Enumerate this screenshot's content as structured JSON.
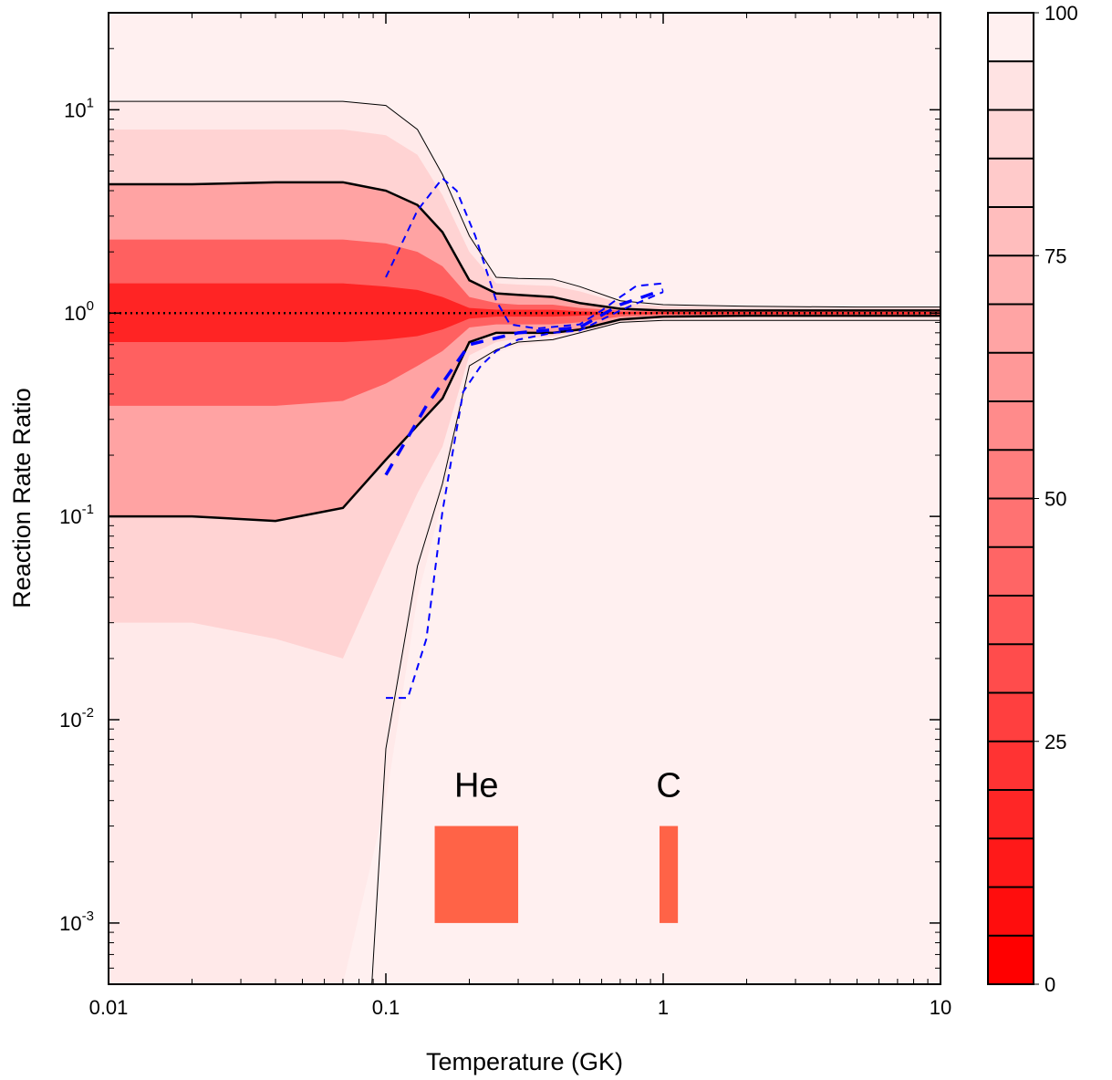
{
  "chart_data": {
    "type": "contour",
    "xlabel": "Temperature (GK)",
    "ylabel": "Reaction Rate Ratio",
    "log_x": true,
    "log_y": true,
    "xlim": [
      0.01,
      10
    ],
    "ylim": [
      0.0005,
      30
    ],
    "xticks": [
      0.01,
      0.1,
      1,
      10
    ],
    "yticks": [
      {
        "value": 0.001,
        "label": "10",
        "exponent": "-3"
      },
      {
        "value": 0.01,
        "label": "10",
        "exponent": "-2"
      },
      {
        "value": 0.1,
        "label": "10",
        "exponent": "-1"
      },
      {
        "value": 1,
        "label": "10",
        "exponent": "0"
      },
      {
        "value": 10,
        "label": "10",
        "exponent": "1"
      }
    ],
    "xminor": [
      0.02,
      0.03,
      0.04,
      0.05,
      0.06,
      0.07,
      0.08,
      0.09,
      0.2,
      0.3,
      0.4,
      0.5,
      0.6,
      0.7,
      0.8,
      0.9,
      2,
      3,
      4,
      5,
      6,
      7,
      8,
      9
    ],
    "yminor": [
      0.0006,
      0.0007,
      0.0008,
      0.0009,
      0.002,
      0.003,
      0.004,
      0.005,
      0.006,
      0.007,
      0.008,
      0.009,
      0.02,
      0.03,
      0.04,
      0.05,
      0.06,
      0.07,
      0.08,
      0.09,
      0.2,
      0.3,
      0.4,
      0.5,
      0.6,
      0.7,
      0.8,
      0.9,
      2,
      3,
      4,
      5,
      6,
      7,
      8,
      9,
      20
    ],
    "colormap": [
      "#ff0000",
      "#fff0f0"
    ],
    "x": [
      0.01,
      0.02,
      0.04,
      0.07,
      0.1,
      0.13,
      0.16,
      0.2,
      0.25,
      0.3,
      0.4,
      0.5,
      0.7,
      1,
      2,
      5,
      10
    ],
    "bands": [
      {
        "level": 97,
        "upper": [
          11,
          11,
          11,
          11,
          10.5,
          8,
          4.8,
          2.4,
          1.5,
          1.48,
          1.47,
          1.35,
          1.15,
          1.1,
          1.08,
          1.07,
          1.07
        ],
        "lower": [
          0.0005,
          0.0005,
          0.0005,
          0.0005,
          0.004,
          0.04,
          0.12,
          0.5,
          0.64,
          0.69,
          0.73,
          0.79,
          0.89,
          0.91,
          0.92,
          0.92,
          0.92
        ]
      },
      {
        "level": 88,
        "upper": [
          8,
          8,
          8,
          8,
          7.5,
          6,
          3.8,
          2.0,
          1.4,
          1.38,
          1.36,
          1.28,
          1.12,
          1.08,
          1.06,
          1.06,
          1.06
        ],
        "lower": [
          0.03,
          0.03,
          0.025,
          0.02,
          0.06,
          0.13,
          0.22,
          0.62,
          0.72,
          0.75,
          0.77,
          0.81,
          0.91,
          0.94,
          0.95,
          0.95,
          0.95
        ]
      },
      {
        "level": 68,
        "upper": [
          4.3,
          4.3,
          4.4,
          4.4,
          4.0,
          3.4,
          2.5,
          1.45,
          1.25,
          1.23,
          1.2,
          1.12,
          1.05,
          1.03,
          1.03,
          1.03,
          1.03
        ],
        "lower": [
          0.1,
          0.1,
          0.095,
          0.11,
          0.19,
          0.28,
          0.38,
          0.72,
          0.8,
          0.8,
          0.8,
          0.83,
          0.93,
          0.96,
          0.97,
          0.97,
          0.97
        ]
      },
      {
        "level": 40,
        "upper": [
          2.3,
          2.3,
          2.3,
          2.3,
          2.2,
          2.0,
          1.7,
          1.2,
          1.12,
          1.1,
          1.1,
          1.06,
          1.03,
          1.02,
          1.02,
          1.02,
          1.02
        ],
        "lower": [
          0.35,
          0.35,
          0.35,
          0.37,
          0.45,
          0.55,
          0.65,
          0.85,
          0.88,
          0.88,
          0.88,
          0.9,
          0.96,
          0.98,
          0.98,
          0.98,
          0.98
        ]
      },
      {
        "level": 15,
        "upper": [
          1.4,
          1.4,
          1.4,
          1.4,
          1.35,
          1.3,
          1.2,
          1.06,
          1.04,
          1.04,
          1.04,
          1.02,
          1.01,
          1.01,
          1.01,
          1.01,
          1.01
        ],
        "lower": [
          0.72,
          0.72,
          0.72,
          0.72,
          0.74,
          0.77,
          0.83,
          0.94,
          0.96,
          0.96,
          0.96,
          0.97,
          0.99,
          0.99,
          0.99,
          0.99,
          0.99
        ]
      }
    ],
    "lines": [
      {
        "color": "#000000",
        "dash": "solid",
        "width": 1,
        "x": [
          0.01,
          0.02,
          0.04,
          0.07,
          0.1,
          0.13,
          0.16,
          0.2,
          0.25,
          0.3,
          0.4,
          0.5,
          0.7,
          1,
          2,
          5,
          10
        ],
        "values": [
          11,
          11,
          11,
          11,
          10.5,
          8,
          4.8,
          2.4,
          1.5,
          1.48,
          1.47,
          1.35,
          1.15,
          1.1,
          1.08,
          1.07,
          1.07
        ]
      },
      {
        "color": "#000000",
        "dash": "solid",
        "width": 1,
        "x": [
          0.089,
          0.1,
          0.13,
          0.16,
          0.2,
          0.25,
          0.3,
          0.4,
          0.5,
          0.7,
          1,
          2,
          5,
          10
        ],
        "values": [
          0.0005,
          0.0072,
          0.057,
          0.145,
          0.55,
          0.66,
          0.72,
          0.74,
          0.8,
          0.9,
          0.92,
          0.92,
          0.92,
          0.92
        ]
      },
      {
        "color": "#000000",
        "dash": "solid",
        "width": 2.5,
        "x": [
          0.01,
          0.02,
          0.04,
          0.07,
          0.1,
          0.13,
          0.16,
          0.2,
          0.25,
          0.3,
          0.4,
          0.5,
          0.7,
          1,
          2,
          5,
          10
        ],
        "values": [
          4.3,
          4.3,
          4.4,
          4.4,
          4.0,
          3.4,
          2.5,
          1.45,
          1.25,
          1.23,
          1.2,
          1.12,
          1.05,
          1.03,
          1.03,
          1.03,
          1.03
        ]
      },
      {
        "color": "#000000",
        "dash": "solid",
        "width": 2.5,
        "x": [
          0.01,
          0.02,
          0.04,
          0.07,
          0.1,
          0.13,
          0.16,
          0.2,
          0.25,
          0.3,
          0.4,
          0.5,
          0.7,
          1,
          2,
          5,
          10
        ],
        "values": [
          0.1,
          0.1,
          0.095,
          0.11,
          0.19,
          0.28,
          0.38,
          0.72,
          0.8,
          0.8,
          0.8,
          0.83,
          0.93,
          0.96,
          0.97,
          0.97,
          0.97
        ]
      },
      {
        "color": "#000000",
        "dash": "dotted",
        "width": 2.5,
        "x": [
          0.01,
          10
        ],
        "values": [
          1,
          1
        ]
      },
      {
        "color": "#0000ff",
        "dash": "dashed",
        "width": 2,
        "x": [
          0.1,
          0.13,
          0.16,
          0.18,
          0.21,
          0.25,
          0.28,
          0.35,
          0.5,
          0.6,
          0.7,
          0.8,
          1.0
        ],
        "values": [
          1.5,
          3.2,
          4.6,
          4.0,
          2.4,
          1.15,
          0.88,
          0.84,
          0.88,
          1.03,
          1.2,
          1.36,
          1.4
        ]
      },
      {
        "color": "#0000ff",
        "dash": "dashed",
        "width": 2,
        "x": [
          0.1,
          0.12,
          0.14,
          0.16,
          0.19,
          0.22,
          0.25,
          0.3,
          0.4,
          0.5,
          0.7,
          1.0
        ],
        "values": [
          0.0128,
          0.0128,
          0.025,
          0.106,
          0.41,
          0.55,
          0.65,
          0.74,
          0.8,
          0.82,
          1.03,
          1.27
        ]
      },
      {
        "color": "#0000ff",
        "dash": "dashed",
        "width": 3.5,
        "x": [
          0.1,
          0.14,
          0.2,
          0.3,
          0.5,
          0.7,
          1.0
        ],
        "values": [
          0.16,
          0.35,
          0.7,
          0.8,
          0.85,
          1.1,
          1.3
        ]
      }
    ],
    "region_color": "#ff6347",
    "regions": [
      {
        "label": "He",
        "x": [
          0.15,
          0.3
        ],
        "y": [
          0.001,
          0.003
        ]
      },
      {
        "label": "C",
        "x": [
          0.97,
          1.13
        ],
        "y": [
          0.001,
          0.003
        ]
      }
    ],
    "colorbar": {
      "lim": [
        0,
        100
      ],
      "ticks": [
        0,
        25,
        50,
        75,
        100
      ],
      "levels": [
        0,
        5,
        10,
        15,
        20,
        25,
        30,
        35,
        40,
        45,
        50,
        55,
        60,
        65,
        70,
        75,
        80,
        85,
        90,
        95,
        100
      ]
    }
  }
}
